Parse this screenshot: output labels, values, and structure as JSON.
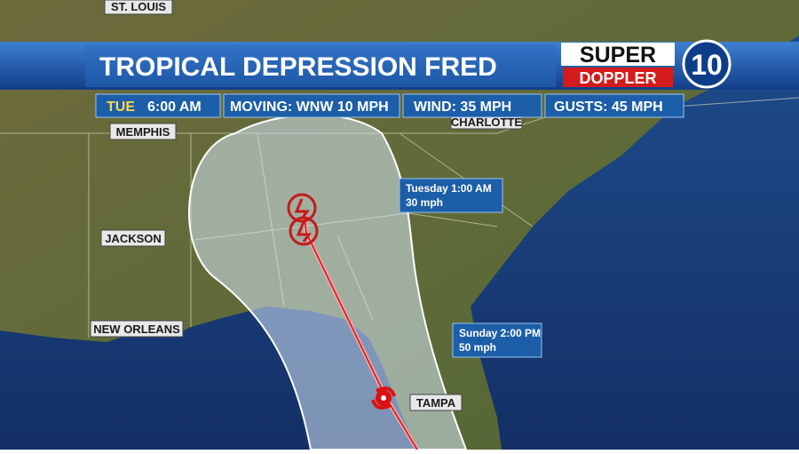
{
  "header": {
    "title": "TROPICAL DEPRESSION FRED",
    "logo": {
      "line1": "SUPER",
      "line2": "DOPPLER",
      "number": "10"
    }
  },
  "info_bar": {
    "day": "TUE",
    "time": "6:00 AM",
    "moving": "MOVING: WNW 10 MPH",
    "wind": "WIND: 35 MPH",
    "gusts": "GUSTS: 45 MPH"
  },
  "cities": [
    "ST. LOUIS",
    "MEMPHIS",
    "CHARLOTTE",
    "JACKSON",
    "NEW ORLEANS",
    "TAMPA"
  ],
  "forecast_points": [
    {
      "time": "Tuesday 1:00 AM",
      "wind": "30 mph"
    },
    {
      "time": "Sunday 2:00 PM",
      "wind": "50 mph"
    }
  ]
}
